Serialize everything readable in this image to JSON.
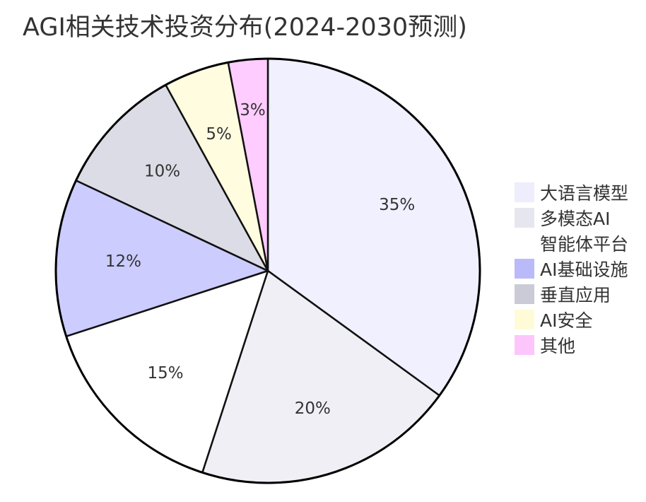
{
  "chart_data": {
    "type": "pie",
    "title": "AGI相关技术投资分布(2024-2030预测)",
    "categories": [
      "大语言模型",
      "多模态AI",
      "智能体平台",
      "AI基础设施",
      "垂直应用",
      "AI安全",
      "其他"
    ],
    "values": [
      35,
      20,
      15,
      12,
      10,
      5,
      3
    ],
    "labels": [
      "35%",
      "20%",
      "15%",
      "12%",
      "10%",
      "5%",
      "3%"
    ],
    "colors": [
      "#f0f0ff",
      "#efeff5",
      "#ffffff",
      "#ccccff",
      "#dcdce6",
      "#fffce0",
      "#ffccff"
    ],
    "legend_colors": [
      "#ededfc",
      "#e6e6ee",
      "#ffffff",
      "#babafa",
      "#cbcbd8",
      "#fffbd8",
      "#fcc6fc"
    ],
    "legend_position": "right"
  }
}
